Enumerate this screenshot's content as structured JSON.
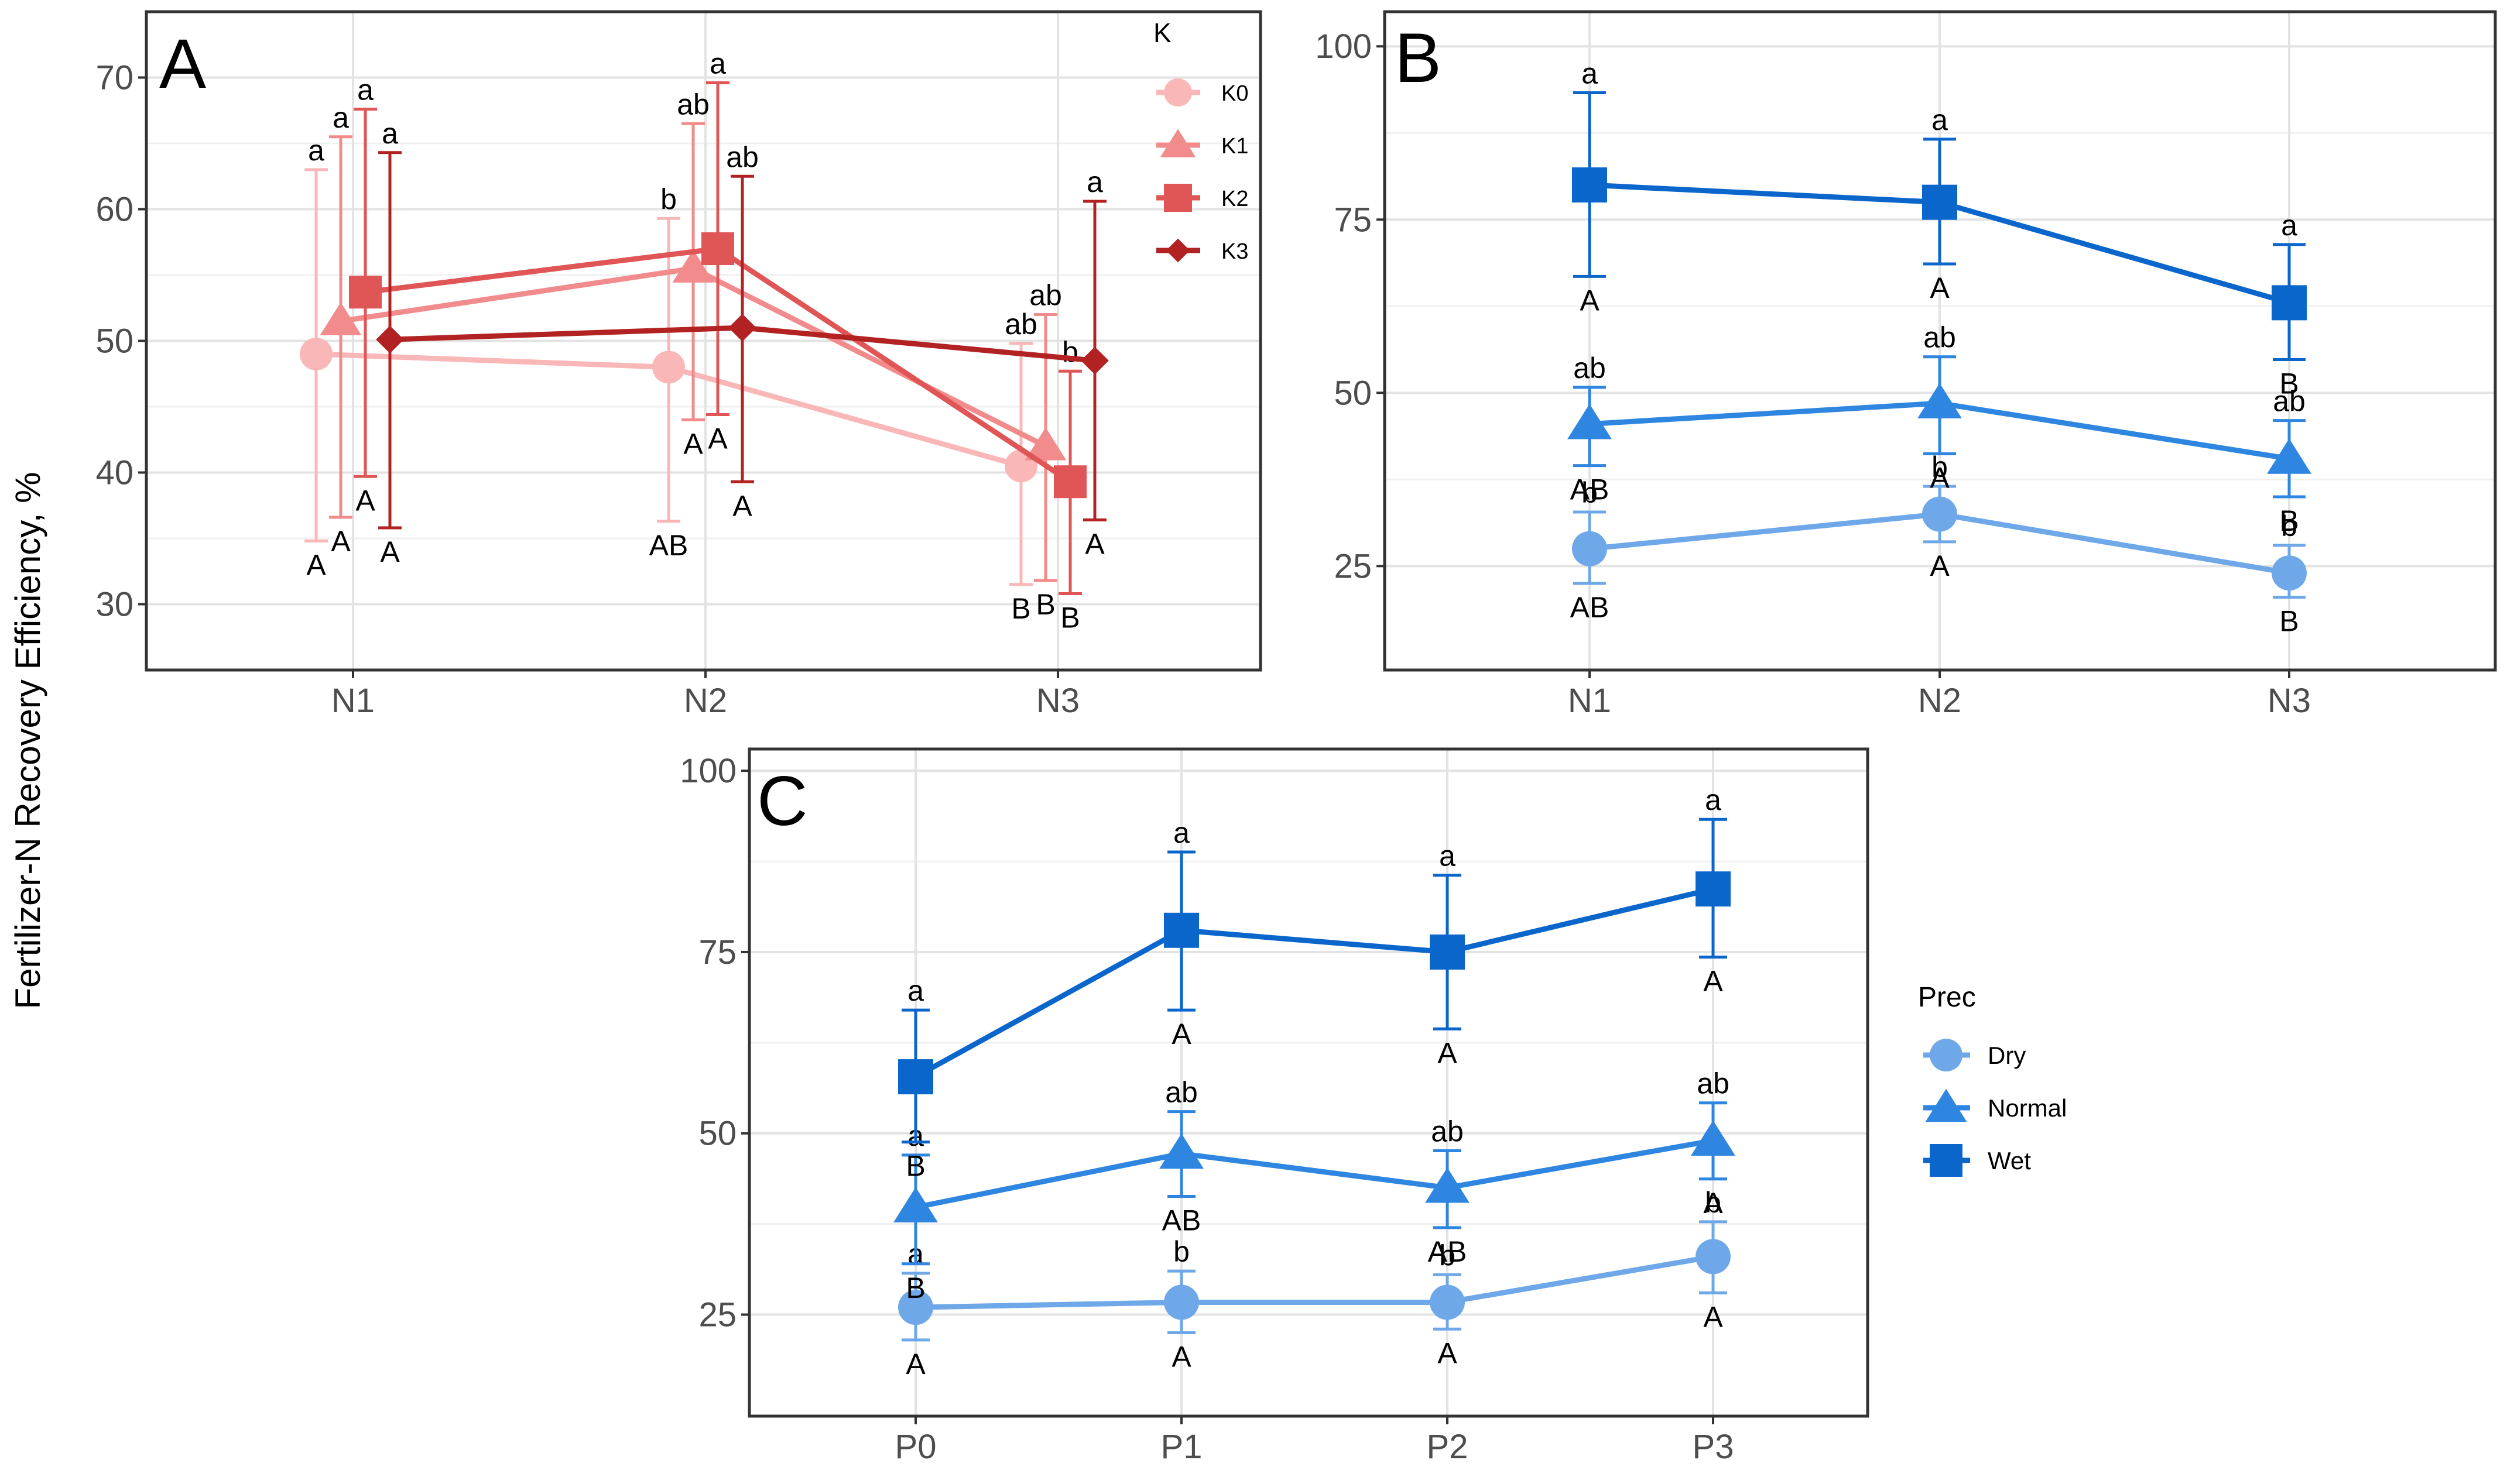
{
  "figure": {
    "ylabel": "Fertilizer-N Recovery Efficiency, %"
  },
  "chart_data": [
    {
      "panel": "A",
      "type": "line",
      "categories": [
        "N1",
        "N2",
        "N3"
      ],
      "ylim": [
        25,
        75
      ],
      "yticks": [
        30,
        40,
        50,
        60,
        70
      ],
      "legend": {
        "title": "K",
        "position": "right-inside-top"
      },
      "series": [
        {
          "name": "K0",
          "marker": "circle",
          "color": "#F9B7B7",
          "values": [
            49,
            48,
            40.5
          ],
          "err_low": [
            34.8,
            36.3,
            31.5
          ],
          "err_high": [
            63,
            59.3,
            49.8
          ],
          "lower": [
            "a",
            "b",
            "ab"
          ],
          "upper": [
            "A",
            "AB",
            "B"
          ]
        },
        {
          "name": "K1",
          "marker": "triangle",
          "color": "#F28B8B",
          "values": [
            51.5,
            55.5,
            42
          ],
          "err_low": [
            36.6,
            44,
            31.8
          ],
          "err_high": [
            65.5,
            66.5,
            52
          ],
          "lower": [
            "a",
            "ab",
            "ab"
          ],
          "upper": [
            "A",
            "A",
            "B"
          ]
        },
        {
          "name": "K2",
          "marker": "square",
          "color": "#E05555",
          "values": [
            53.7,
            57,
            39.3
          ],
          "err_low": [
            39.7,
            44.4,
            30.8
          ],
          "err_high": [
            67.6,
            69.6,
            47.7
          ],
          "lower": [
            "a",
            "a",
            "b"
          ],
          "upper": [
            "A",
            "A",
            "B"
          ]
        },
        {
          "name": "K3",
          "marker": "diamond",
          "color": "#B22222",
          "values": [
            50.1,
            51,
            48.5
          ],
          "err_low": [
            35.8,
            39.3,
            36.4
          ],
          "err_high": [
            64.3,
            62.5,
            60.6
          ],
          "lower": [
            "a",
            "ab",
            "a"
          ],
          "upper": [
            "A",
            "A",
            "A"
          ]
        }
      ]
    },
    {
      "panel": "B",
      "type": "line",
      "categories": [
        "N1",
        "N2",
        "N3"
      ],
      "ylim": [
        10,
        105
      ],
      "yticks": [
        25,
        50,
        75,
        100
      ],
      "series": [
        {
          "name": "Dry",
          "marker": "circle",
          "color": "#6FA8E8",
          "values": [
            27.5,
            32.5,
            24
          ],
          "err_low": [
            22.5,
            28.5,
            20.5
          ],
          "err_high": [
            32.8,
            36.5,
            28
          ],
          "lower": [
            "b",
            "b",
            "b"
          ],
          "upper": [
            "AB",
            "A",
            "B"
          ]
        },
        {
          "name": "Normal",
          "marker": "triangle",
          "color": "#2F86E0",
          "values": [
            45.5,
            48.5,
            40.5
          ],
          "err_low": [
            39.5,
            41.2,
            35
          ],
          "err_high": [
            50.8,
            55.2,
            46
          ],
          "lower": [
            "ab",
            "ab",
            "ab"
          ],
          "upper": [
            "AB",
            "A",
            "B"
          ]
        },
        {
          "name": "Wet",
          "marker": "square",
          "color": "#0B66CC",
          "values": [
            80,
            77.5,
            63
          ],
          "err_low": [
            66.8,
            68.6,
            54.8
          ],
          "err_high": [
            93.3,
            86.6,
            71.4
          ],
          "lower": [
            "a",
            "a",
            "a"
          ],
          "upper": [
            "A",
            "A",
            "B"
          ]
        }
      ]
    },
    {
      "panel": "C",
      "type": "line",
      "categories": [
        "P0",
        "P1",
        "P2",
        "P3"
      ],
      "ylim": [
        11,
        103
      ],
      "yticks": [
        25,
        50,
        75,
        100
      ],
      "legend": {
        "title": "Prec",
        "position": "right-outside"
      },
      "series": [
        {
          "name": "Dry",
          "marker": "circle",
          "color": "#6FA8E8",
          "values": [
            26,
            26.7,
            26.7,
            33
          ],
          "err_low": [
            21.5,
            22.5,
            23,
            28
          ],
          "err_high": [
            30.7,
            31,
            30.5,
            37.8
          ],
          "lower": [
            "a",
            "b",
            "b",
            "b"
          ],
          "upper": [
            "A",
            "A",
            "A",
            "A"
          ]
        },
        {
          "name": "Normal",
          "marker": "triangle",
          "color": "#2F86E0",
          "values": [
            39.8,
            47.2,
            42.5,
            49
          ],
          "err_low": [
            32,
            41.3,
            37,
            43.7
          ],
          "err_high": [
            47,
            53,
            47.6,
            54.2
          ],
          "lower": [
            "a",
            "ab",
            "ab",
            "ab"
          ],
          "upper": [
            "B",
            "AB",
            "AB",
            "A"
          ]
        },
        {
          "name": "Wet",
          "marker": "square",
          "color": "#0B66CC",
          "values": [
            57.8,
            78,
            75,
            83.7
          ],
          "err_low": [
            48.8,
            67,
            64.4,
            74.3
          ],
          "err_high": [
            67,
            88.8,
            85.6,
            93.3
          ],
          "lower": [
            "a",
            "a",
            "a",
            "a"
          ],
          "upper": [
            "B",
            "A",
            "A",
            "A"
          ]
        }
      ]
    }
  ]
}
